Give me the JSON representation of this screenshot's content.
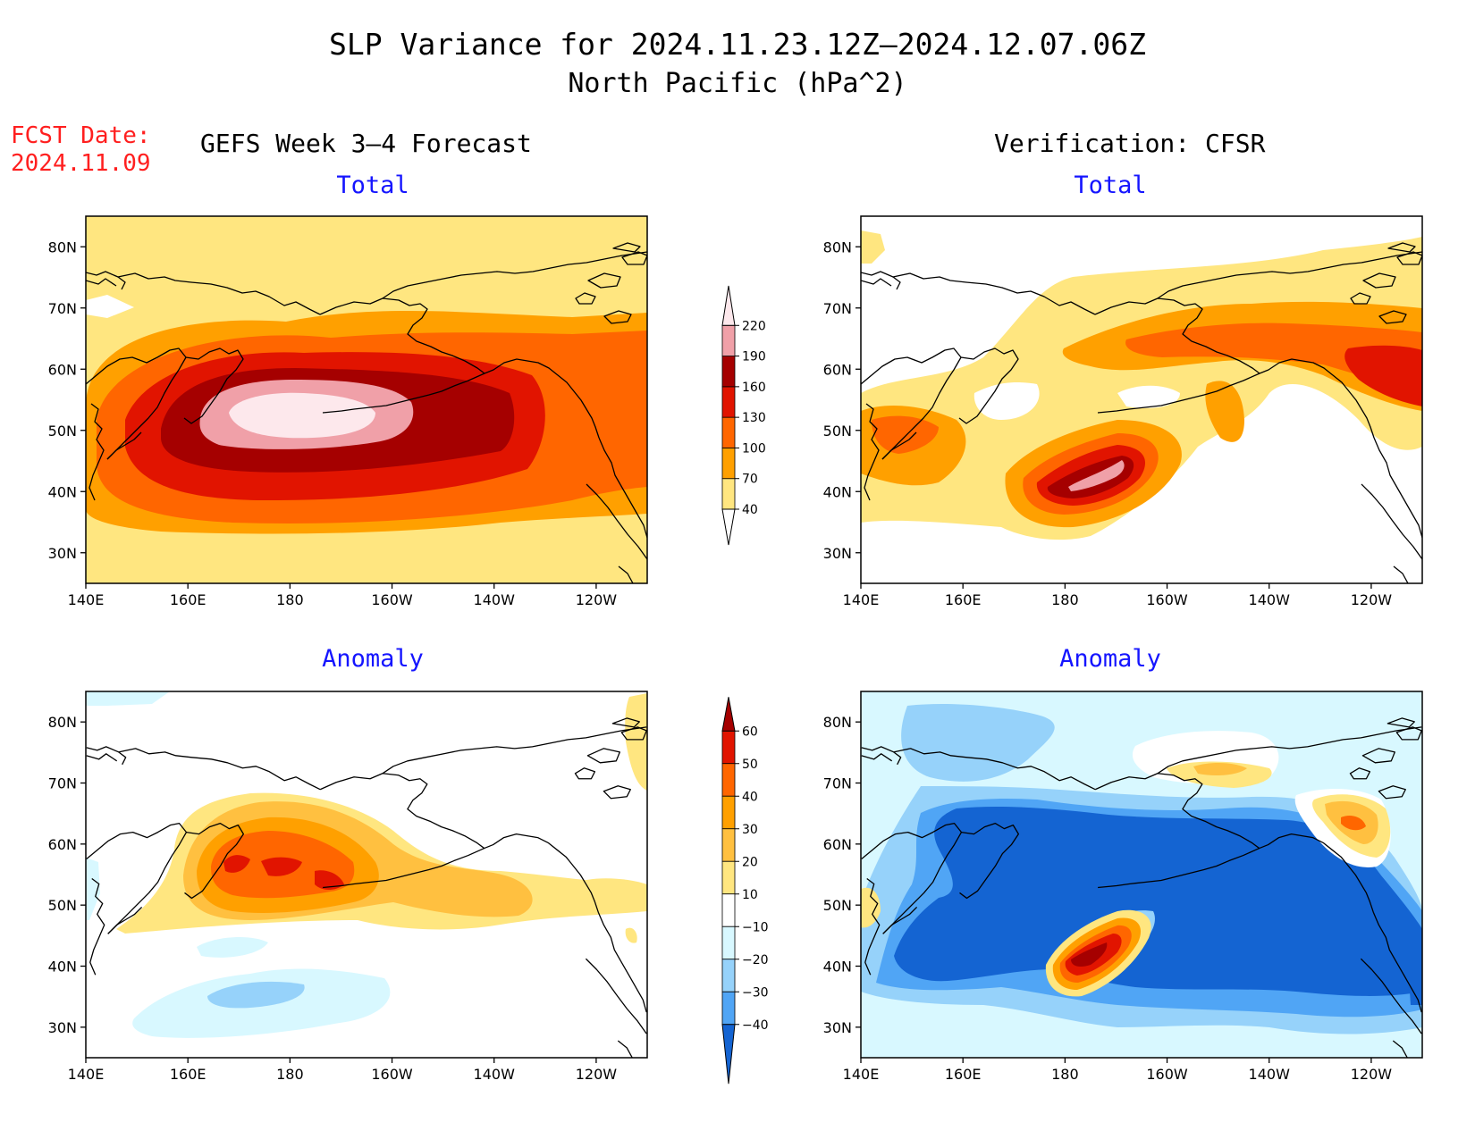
{
  "title": {
    "line1": "SLP Variance for 2024.11.23.12Z—2024.12.07.06Z",
    "line2": "North Pacific (hPa^2)"
  },
  "forecast": {
    "label": "FCST Date:",
    "date": "2024.11.09"
  },
  "columns": {
    "left": "GEFS Week 3—4 Forecast",
    "right": "Verification: CFSR"
  },
  "panel_titles": {
    "total": "Total",
    "anomaly": "Anomaly"
  },
  "axes": {
    "lon_ticks": [
      "140E",
      "160E",
      "180",
      "160W",
      "140W",
      "120W"
    ],
    "lat_ticks": [
      "80N",
      "70N",
      "60N",
      "50N",
      "40N",
      "30N"
    ]
  },
  "colorbars": {
    "total": {
      "levels": [
        "40",
        "70",
        "100",
        "130",
        "160",
        "190",
        "220"
      ],
      "colors": [
        "#ffe680",
        "#ffa000",
        "#ff6600",
        "#e11400",
        "#a50000",
        "#f0a0a8",
        "#fde8ec"
      ]
    },
    "anomaly": {
      "levels": [
        "60",
        "50",
        "40",
        "30",
        "20",
        "10",
        "−10",
        "−20",
        "−30",
        "−40"
      ],
      "colors": [
        "#a50000",
        "#e11400",
        "#ff6600",
        "#ffa000",
        "#ffc040",
        "#ffe680",
        "#ffffff",
        "#d8f8ff",
        "#96d2fa",
        "#50a5f5",
        "#1464d2"
      ]
    }
  },
  "chart_data": [
    {
      "type": "heatmap",
      "panel": "GEFS Week 3—4 Forecast – Total",
      "units": "hPa^2",
      "lon_range": [
        "140E",
        "110W"
      ],
      "lat_range": [
        25,
        85
      ],
      "max_center": {
        "lon": "178E",
        "lat": 51,
        "value": 230
      },
      "secondary_max": {
        "lon": "145W",
        "lat": 51,
        "value": 165
      }
    },
    {
      "type": "heatmap",
      "panel": "Verification: CFSR – Total",
      "units": "hPa^2",
      "lon_range": [
        "140E",
        "110W"
      ],
      "lat_range": [
        25,
        85
      ],
      "max_center": {
        "lon": "168W",
        "lat": 45,
        "value": 195
      },
      "secondary_max": {
        "lon": "115W",
        "lat": 60,
        "value": 135
      }
    },
    {
      "type": "heatmap",
      "panel": "GEFS Week 3—4 Forecast – Anomaly",
      "units": "hPa^2",
      "lon_range": [
        "140E",
        "110W"
      ],
      "lat_range": [
        25,
        85
      ],
      "max_center": {
        "lon": "178E",
        "lat": 57,
        "value": 45
      },
      "min_center": {
        "lon": "178E",
        "lat": 36,
        "value": -22
      }
    },
    {
      "type": "heatmap",
      "panel": "Verification: CFSR – Anomaly",
      "units": "hPa^2",
      "lon_range": [
        "140E",
        "110W"
      ],
      "lat_range": [
        25,
        85
      ],
      "max_center": {
        "lon": "175W",
        "lat": 42,
        "value": 62
      },
      "min_center": {
        "lon": "160W",
        "lat": 52,
        "value": -45
      }
    }
  ]
}
